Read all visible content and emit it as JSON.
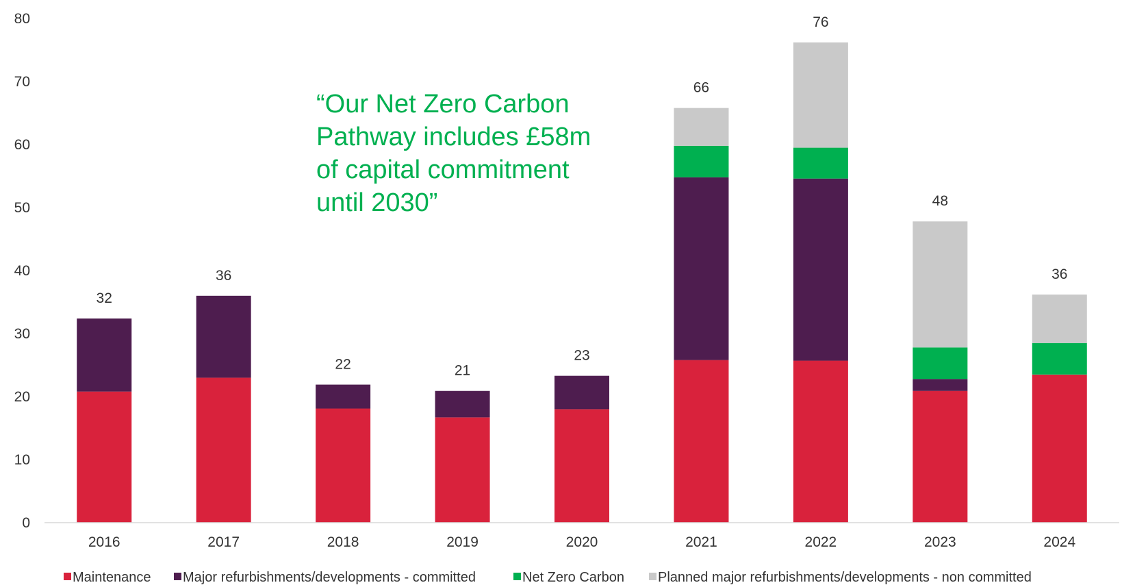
{
  "chart_data": {
    "type": "bar",
    "stacked": true,
    "categories": [
      "2016",
      "2017",
      "2018",
      "2019",
      "2020",
      "2021",
      "2022",
      "2023",
      "2024"
    ],
    "series": [
      {
        "name": "Maintenance",
        "color": "#d9223c",
        "values": [
          20.8,
          23.0,
          18.1,
          16.7,
          18.0,
          25.8,
          25.7,
          20.9,
          23.5
        ]
      },
      {
        "name": "Major refurbishments/developments - committed",
        "color": "#4e1d4f",
        "values": [
          11.6,
          13.0,
          3.8,
          4.2,
          5.3,
          29.0,
          28.9,
          1.9,
          0
        ]
      },
      {
        "name": "Net Zero Carbon",
        "color": "#00b050",
        "values": [
          0,
          0,
          0,
          0,
          0,
          5.0,
          4.9,
          5.0,
          5.0
        ]
      },
      {
        "name": "Planned major refurbishments/developments - non committed",
        "color": "#c9c9c9",
        "values": [
          0,
          0,
          0,
          0,
          0,
          6.0,
          16.7,
          20.0,
          7.7
        ]
      }
    ],
    "totals": [
      "32",
      "36",
      "22",
      "21",
      "23",
      "66",
      "76",
      "48",
      "36"
    ],
    "ylim": [
      0,
      80
    ],
    "yticks": [
      "0",
      "10",
      "20",
      "30",
      "40",
      "50",
      "60",
      "70",
      "80"
    ],
    "legend_position": "bottom",
    "annotation": [
      "“Our Net Zero Carbon",
      "Pathway includes £58m",
      "of capital commitment",
      "until 2030”"
    ],
    "annotation_color": "#00b050",
    "axis_color": "#d9d9d9"
  }
}
